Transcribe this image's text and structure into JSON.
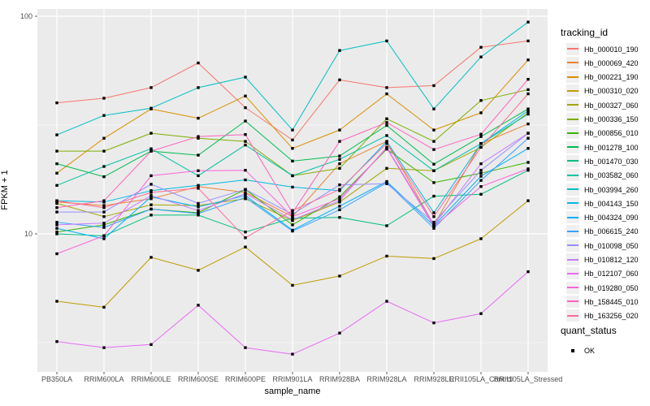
{
  "figure": {
    "background": "#FFFFFF",
    "panel_background": "#EBEBEB",
    "grid_color": "#FFFFFF",
    "tick_text_color": "#4D4D4D",
    "point_color": "#000000"
  },
  "legend": {
    "color_title": "tracking_id",
    "shape_title": "quant_status",
    "shape_items": [
      {
        "label": "OK",
        "icon": "filled-black-square"
      }
    ]
  },
  "chart_data": {
    "type": "line",
    "title": "",
    "xlabel": "sample_name",
    "ylabel": "FPKM + 1",
    "y_scale": "log10",
    "y_tick_labels": [
      "100",
      "10"
    ],
    "y_tick_values": [
      100,
      10
    ],
    "y_minor_gridlines": [
      31.623,
      3.1623
    ],
    "ylim": [
      2.3,
      108
    ],
    "grid": "on",
    "legend_position": "right",
    "point_shape": "filled-square-black",
    "x": [
      "PB350LA",
      "RRIM600LA",
      "RRIM600LE",
      "RRIM600SE",
      "RRIM600PE",
      "RRIM901LA",
      "RRIM928BA",
      "RRIM928LA",
      "RRIM928LE",
      "RRII105LA_Control",
      "RRII105LA_Stressed"
    ],
    "series": [
      {
        "name": "Hb_000010_190",
        "color": "#F8766D",
        "values": [
          40,
          42,
          47,
          61,
          38,
          27,
          51,
          47,
          48,
          72,
          77
        ]
      },
      {
        "name": "Hb_000069_420",
        "color": "#EA8331",
        "values": [
          14,
          13.5,
          14.5,
          16.5,
          15.5,
          12,
          21,
          26.6,
          11,
          26,
          32
        ]
      },
      {
        "name": "Hb_000221_190",
        "color": "#D89000",
        "values": [
          19,
          27.5,
          37.5,
          34,
          43,
          24.7,
          30,
          44,
          30,
          36,
          63
        ]
      },
      {
        "name": "Hb_000310_020",
        "color": "#C09B00",
        "values": [
          4.9,
          4.6,
          7.8,
          6.8,
          8.7,
          5.8,
          6.4,
          7.9,
          7.7,
          9.5,
          14.2
        ]
      },
      {
        "name": "Hb_000327_060",
        "color": "#A3A500",
        "values": [
          13.8,
          12,
          13.6,
          13.5,
          14.5,
          11.5,
          14,
          20,
          19.5,
          25,
          36
        ]
      },
      {
        "name": "Hb_000336_150",
        "color": "#7CAE00",
        "values": [
          24,
          24,
          29,
          27.5,
          26.6,
          18.5,
          20,
          33.8,
          26.6,
          41,
          46
        ]
      },
      {
        "name": "Hb_000856_010",
        "color": "#39B600",
        "values": [
          10.2,
          11,
          13,
          12.5,
          16,
          11,
          14.8,
          24.5,
          17.2,
          19,
          21.3
        ]
      },
      {
        "name": "Hb_001278_100",
        "color": "#00BB4E",
        "values": [
          21,
          18.3,
          24,
          23,
          33,
          21.6,
          22.8,
          31.5,
          20.9,
          28,
          37.5
        ]
      },
      {
        "name": "Hb_001470_030",
        "color": "#00BF7D",
        "values": [
          10,
          9.8,
          12.2,
          12.2,
          10.2,
          11.8,
          11.9,
          10.9,
          14.9,
          15.2,
          19.6
        ]
      },
      {
        "name": "Hb_003582_060",
        "color": "#00C1A3",
        "values": [
          16.7,
          20.4,
          24.6,
          18.5,
          25.6,
          18.5,
          22,
          28.3,
          19.5,
          26,
          35.5
        ]
      },
      {
        "name": "Hb_003994_260",
        "color": "#00BFC4",
        "values": [
          28.5,
          35,
          37.8,
          47,
          52.5,
          30,
          69.6,
          77,
          37.5,
          65,
          94
        ]
      },
      {
        "name": "Hb_004143_150",
        "color": "#00BAE0",
        "values": [
          14.2,
          14,
          15.8,
          16.7,
          17.7,
          16.4,
          15.8,
          26.6,
          12.5,
          26,
          36.8
        ]
      },
      {
        "name": "Hb_004324_090",
        "color": "#00B0F6",
        "values": [
          10.6,
          9.5,
          14.8,
          13.3,
          15,
          10.4,
          13.4,
          17.4,
          10.9,
          18.4,
          24.7
        ]
      },
      {
        "name": "Hb_006615_240",
        "color": "#35A2FF",
        "values": [
          11.3,
          10.7,
          13,
          12.4,
          14.7,
          10.3,
          12.9,
          17.2,
          10.6,
          17.6,
          27.5
        ]
      },
      {
        "name": "Hb_010098_050",
        "color": "#9590FF",
        "values": [
          12.6,
          12.6,
          16.9,
          13.8,
          16,
          12.3,
          16.8,
          17,
          11.3,
          19.6,
          29
        ]
      },
      {
        "name": "Hb_010812_120",
        "color": "#C77CFF",
        "values": [
          11,
          11.2,
          15,
          12.8,
          15.3,
          11.6,
          14.2,
          25,
          11,
          21,
          29
        ]
      },
      {
        "name": "Hb_012107_060",
        "color": "#E76BF3",
        "values": [
          3.2,
          3,
          3.1,
          4.7,
          3,
          2.8,
          3.5,
          4.9,
          3.9,
          4.3,
          6.7
        ]
      },
      {
        "name": "Hb_019280_050",
        "color": "#FA62DB",
        "values": [
          8.1,
          9.8,
          18.5,
          19.5,
          19.6,
          12,
          14.5,
          24.8,
          10.8,
          16.5,
          19.9
        ]
      },
      {
        "name": "Hb_158445_010",
        "color": "#FF62BC",
        "values": [
          13.2,
          14.2,
          24,
          28,
          28.6,
          12.5,
          26.6,
          32.5,
          24.4,
          28.7,
          51.3
        ]
      },
      {
        "name": "Hb_163256_020",
        "color": "#FF6A98",
        "values": [
          14.2,
          13.2,
          15.5,
          16.2,
          9.6,
          12.8,
          16,
          26,
          12,
          25,
          44
        ]
      }
    ]
  }
}
